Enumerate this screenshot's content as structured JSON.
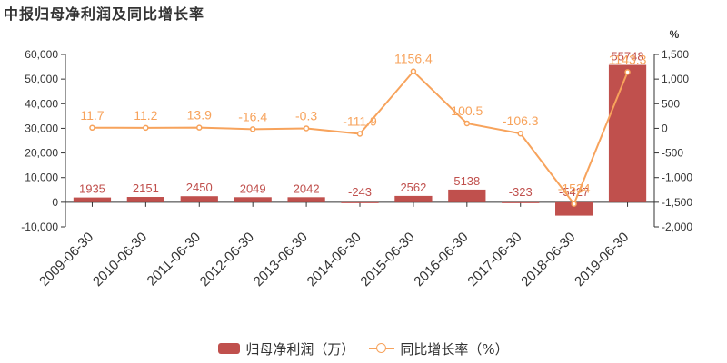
{
  "title": "中报归母净利润及同比增长率",
  "chart_data": {
    "type": "bar",
    "categories": [
      "2009-06-30",
      "2010-06-30",
      "2011-06-30",
      "2012-06-30",
      "2013-06-30",
      "2014-06-30",
      "2015-06-30",
      "2016-06-30",
      "2017-06-30",
      "2018-06-30",
      "2019-06-30"
    ],
    "series": [
      {
        "name": "归母净利润（万）",
        "type": "bar",
        "axis": "left",
        "values": [
          1935,
          2151,
          2450,
          2049,
          2042,
          -243,
          2562,
          5138,
          -323,
          -5427,
          55748
        ],
        "labels": [
          "1935",
          "2151",
          "2450",
          "2049",
          "2042",
          "-243",
          "2562",
          "5138",
          "-323",
          "-5427",
          "55748"
        ],
        "color": "#c0504d"
      },
      {
        "name": "同比增长率（%）",
        "type": "line",
        "axis": "right",
        "values": [
          11.7,
          11.2,
          13.9,
          -16.4,
          -0.3,
          -111.9,
          1156.4,
          100.5,
          -106.3,
          -1534,
          1143.3
        ],
        "labels": [
          "11.7",
          "11.2",
          "13.9",
          "-16.4",
          "-0.3",
          "-111.9",
          "1156.4",
          "100.5",
          "-106.3",
          "-1534",
          "1143.3"
        ],
        "color": "#f7a35c"
      }
    ],
    "y_left": {
      "ylim": [
        -10000,
        60000
      ],
      "ticks": [
        -10000,
        0,
        10000,
        20000,
        30000,
        40000,
        50000,
        60000
      ],
      "tick_labels": [
        "-10,000",
        "0",
        "10,000",
        "20,000",
        "30,000",
        "40,000",
        "50,000",
        "60,000"
      ]
    },
    "y_right": {
      "label": "%",
      "ylim": [
        -2000,
        1500
      ],
      "ticks": [
        -2000,
        -1500,
        -1000,
        -500,
        0,
        500,
        1000,
        1500
      ],
      "tick_labels": [
        "-2,000",
        "-1,500",
        "-1,000",
        "-500",
        "0",
        "500",
        "1,000",
        "1,500"
      ]
    },
    "grid": false,
    "legend": "bottom"
  }
}
